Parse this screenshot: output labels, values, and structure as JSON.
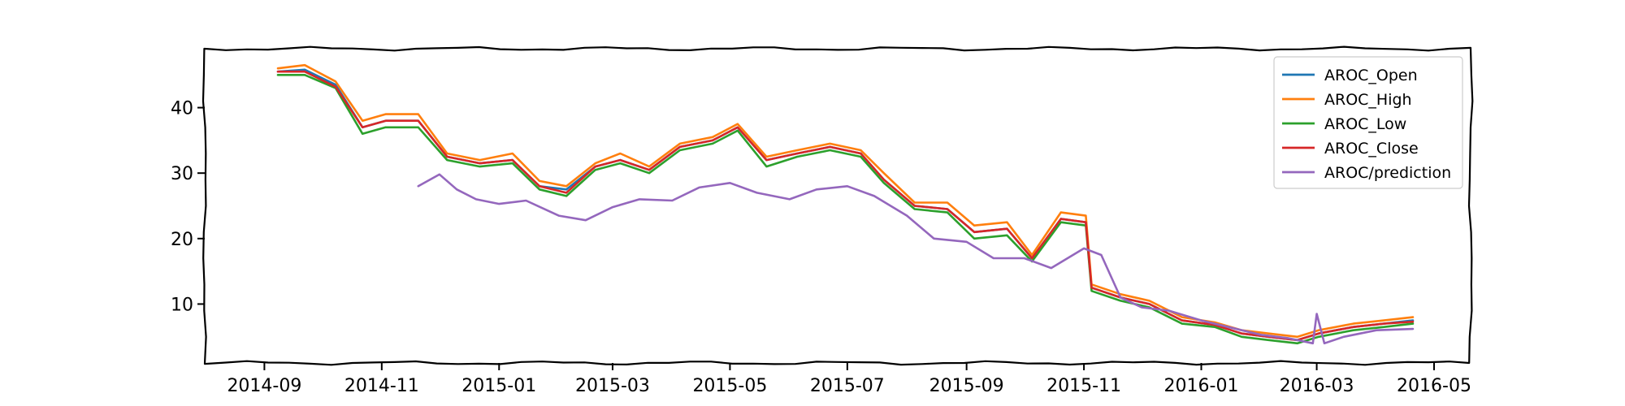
{
  "chart_data": {
    "type": "line",
    "title": "",
    "xlabel": "",
    "ylabel": "",
    "xlim": [
      "2014-08-01",
      "2016-05-20"
    ],
    "ylim": [
      1,
      49
    ],
    "grid": false,
    "legend_position": "top-right",
    "x_ticks": [
      "2014-09",
      "2014-11",
      "2015-01",
      "2015-03",
      "2015-05",
      "2015-07",
      "2015-09",
      "2015-11",
      "2016-01",
      "2016-03",
      "2016-05"
    ],
    "y_ticks": [
      10,
      20,
      30,
      40
    ],
    "series": [
      {
        "name": "AROC_Open",
        "color": "#1f77b4",
        "x": [
          "2014-09-08",
          "2014-09-22",
          "2014-10-08",
          "2014-10-22",
          "2014-11-03",
          "2014-11-20",
          "2014-12-05",
          "2014-12-22",
          "2015-01-08",
          "2015-01-22",
          "2015-02-05",
          "2015-02-20",
          "2015-03-05",
          "2015-03-20",
          "2015-04-05",
          "2015-04-22",
          "2015-05-05",
          "2015-05-20",
          "2015-06-05",
          "2015-06-22",
          "2015-07-08",
          "2015-07-20",
          "2015-08-05",
          "2015-08-22",
          "2015-09-05",
          "2015-09-22",
          "2015-10-05",
          "2015-10-20",
          "2015-11-02",
          "2015-11-05",
          "2015-11-20",
          "2015-12-05",
          "2015-12-22",
          "2016-01-08",
          "2016-01-22",
          "2016-02-05",
          "2016-02-20",
          "2016-03-02",
          "2016-03-20",
          "2016-04-05",
          "2016-04-20"
        ],
        "values": [
          45.5,
          45.8,
          43.5,
          37,
          38,
          38,
          32.5,
          31.5,
          32,
          28,
          27.5,
          31,
          32,
          30.5,
          34,
          35,
          37,
          32,
          33,
          34,
          33,
          29,
          25,
          24.5,
          21,
          21.5,
          17,
          23,
          22.5,
          12.5,
          11,
          10,
          7.5,
          6.8,
          5.5,
          5,
          4.5,
          5.5,
          6.5,
          7,
          7.5
        ]
      },
      {
        "name": "AROC_High",
        "color": "#ff7f0e",
        "x": [
          "2014-09-08",
          "2014-09-22",
          "2014-10-08",
          "2014-10-22",
          "2014-11-03",
          "2014-11-20",
          "2014-12-05",
          "2014-12-22",
          "2015-01-08",
          "2015-01-22",
          "2015-02-05",
          "2015-02-20",
          "2015-03-05",
          "2015-03-20",
          "2015-04-05",
          "2015-04-22",
          "2015-05-05",
          "2015-05-20",
          "2015-06-05",
          "2015-06-22",
          "2015-07-08",
          "2015-07-20",
          "2015-08-05",
          "2015-08-22",
          "2015-09-05",
          "2015-09-22",
          "2015-10-05",
          "2015-10-20",
          "2015-11-02",
          "2015-11-05",
          "2015-11-20",
          "2015-12-05",
          "2015-12-22",
          "2016-01-08",
          "2016-01-22",
          "2016-02-05",
          "2016-02-20",
          "2016-03-02",
          "2016-03-20",
          "2016-04-05",
          "2016-04-20"
        ],
        "values": [
          46,
          46.5,
          44,
          38,
          39,
          39,
          33,
          32,
          33,
          28.8,
          28,
          31.5,
          33,
          31,
          34.5,
          35.5,
          37.5,
          32.5,
          33.5,
          34.5,
          33.5,
          30,
          25.5,
          25.5,
          22,
          22.5,
          17.5,
          24,
          23.5,
          13,
          11.5,
          10.5,
          8,
          7.2,
          6,
          5.5,
          5,
          6,
          7,
          7.5,
          8
        ]
      },
      {
        "name": "AROC_Low",
        "color": "#2ca02c",
        "x": [
          "2014-09-08",
          "2014-09-22",
          "2014-10-08",
          "2014-10-22",
          "2014-11-03",
          "2014-11-20",
          "2014-12-05",
          "2014-12-22",
          "2015-01-08",
          "2015-01-22",
          "2015-02-05",
          "2015-02-20",
          "2015-03-05",
          "2015-03-20",
          "2015-04-05",
          "2015-04-22",
          "2015-05-05",
          "2015-05-20",
          "2015-06-05",
          "2015-06-22",
          "2015-07-08",
          "2015-07-20",
          "2015-08-05",
          "2015-08-22",
          "2015-09-05",
          "2015-09-22",
          "2015-10-05",
          "2015-10-20",
          "2015-11-02",
          "2015-11-05",
          "2015-11-20",
          "2015-12-05",
          "2015-12-22",
          "2016-01-08",
          "2016-01-22",
          "2016-02-05",
          "2016-02-20",
          "2016-03-02",
          "2016-03-20",
          "2016-04-05",
          "2016-04-20"
        ],
        "values": [
          45,
          45,
          43,
          36,
          37,
          37,
          32,
          31,
          31.5,
          27.5,
          26.5,
          30.5,
          31.5,
          30,
          33.5,
          34.5,
          36.5,
          31,
          32.5,
          33.5,
          32.5,
          28.5,
          24.5,
          24,
          20,
          20.5,
          16.5,
          22.5,
          22,
          12,
          10.5,
          9.5,
          7,
          6.5,
          5,
          4.5,
          4,
          5,
          6,
          6.5,
          7
        ]
      },
      {
        "name": "AROC_Close",
        "color": "#d62728",
        "x": [
          "2014-09-08",
          "2014-09-22",
          "2014-10-08",
          "2014-10-22",
          "2014-11-03",
          "2014-11-20",
          "2014-12-05",
          "2014-12-22",
          "2015-01-08",
          "2015-01-22",
          "2015-02-05",
          "2015-02-20",
          "2015-03-05",
          "2015-03-20",
          "2015-04-05",
          "2015-04-22",
          "2015-05-05",
          "2015-05-20",
          "2015-06-05",
          "2015-06-22",
          "2015-07-08",
          "2015-07-20",
          "2015-08-05",
          "2015-08-22",
          "2015-09-05",
          "2015-09-22",
          "2015-10-05",
          "2015-10-20",
          "2015-11-02",
          "2015-11-05",
          "2015-11-20",
          "2015-12-05",
          "2015-12-22",
          "2016-01-08",
          "2016-01-22",
          "2016-02-05",
          "2016-02-20",
          "2016-03-02",
          "2016-03-20",
          "2016-04-05",
          "2016-04-20"
        ],
        "values": [
          45.5,
          45.5,
          43.2,
          37,
          38,
          38,
          32.5,
          31.5,
          32,
          28,
          27,
          31,
          32,
          30.5,
          34,
          35,
          37,
          32,
          33,
          34,
          33,
          29,
          25,
          24.5,
          21,
          21.5,
          17,
          23,
          22.5,
          12.5,
          11,
          10,
          7.5,
          6.8,
          5.5,
          5,
          4.5,
          5.5,
          6.5,
          7,
          7.3
        ]
      },
      {
        "name": "AROC/prediction",
        "color": "#9467bd",
        "x": [
          "2014-11-20",
          "2014-12-01",
          "2014-12-10",
          "2014-12-20",
          "2015-01-01",
          "2015-01-15",
          "2015-02-01",
          "2015-02-15",
          "2015-03-01",
          "2015-03-15",
          "2015-04-01",
          "2015-04-15",
          "2015-05-01",
          "2015-05-15",
          "2015-06-01",
          "2015-06-15",
          "2015-07-01",
          "2015-07-15",
          "2015-08-01",
          "2015-08-15",
          "2015-09-01",
          "2015-09-15",
          "2015-10-01",
          "2015-10-15",
          "2015-11-01",
          "2015-11-10",
          "2015-11-20",
          "2015-12-01",
          "2015-12-15",
          "2016-01-01",
          "2016-01-15",
          "2016-02-01",
          "2016-02-15",
          "2016-02-28",
          "2016-03-01",
          "2016-03-05",
          "2016-03-15",
          "2016-04-01",
          "2016-04-20"
        ],
        "values": [
          28,
          29.8,
          27.5,
          26,
          25.3,
          25.8,
          23.5,
          22.8,
          24.8,
          26,
          25.8,
          27.8,
          28.5,
          27,
          26,
          27.5,
          28,
          26.5,
          23.5,
          20,
          19.5,
          17,
          17,
          15.5,
          18.5,
          17.5,
          11,
          9.5,
          9,
          7.5,
          6.5,
          5.3,
          4.8,
          4,
          8.5,
          4,
          5,
          6,
          6.2
        ]
      }
    ]
  }
}
